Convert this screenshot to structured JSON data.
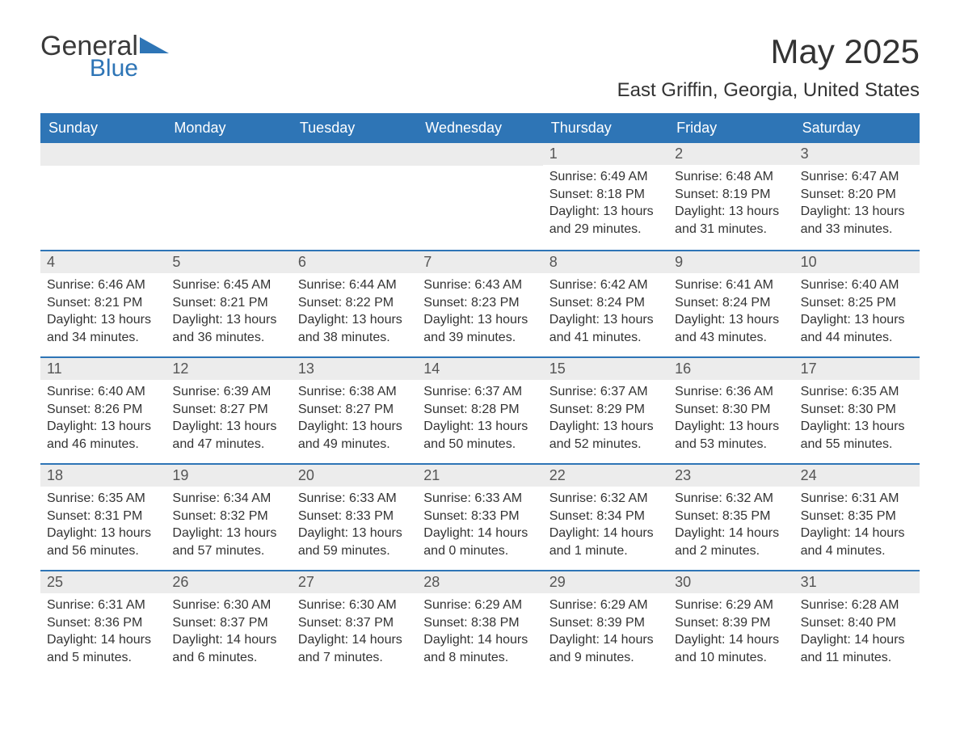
{
  "logo": {
    "word1": "General",
    "word2": "Blue"
  },
  "title": "May 2025",
  "location": "East Griffin, Georgia, United States",
  "colors": {
    "header_bg": "#2e75b6",
    "header_text": "#ffffff",
    "daynum_bg": "#ececec",
    "rule": "#2e75b6",
    "body_text": "#333333",
    "logo_gray": "#3a3a3a",
    "logo_blue": "#2e75b6",
    "page_bg": "#ffffff"
  },
  "weekdays": [
    "Sunday",
    "Monday",
    "Tuesday",
    "Wednesday",
    "Thursday",
    "Friday",
    "Saturday"
  ],
  "weeks": [
    [
      {
        "n": "",
        "sunrise": "",
        "sunset": "",
        "daylight": ""
      },
      {
        "n": "",
        "sunrise": "",
        "sunset": "",
        "daylight": ""
      },
      {
        "n": "",
        "sunrise": "",
        "sunset": "",
        "daylight": ""
      },
      {
        "n": "",
        "sunrise": "",
        "sunset": "",
        "daylight": ""
      },
      {
        "n": "1",
        "sunrise": "Sunrise: 6:49 AM",
        "sunset": "Sunset: 8:18 PM",
        "daylight": "Daylight: 13 hours and 29 minutes."
      },
      {
        "n": "2",
        "sunrise": "Sunrise: 6:48 AM",
        "sunset": "Sunset: 8:19 PM",
        "daylight": "Daylight: 13 hours and 31 minutes."
      },
      {
        "n": "3",
        "sunrise": "Sunrise: 6:47 AM",
        "sunset": "Sunset: 8:20 PM",
        "daylight": "Daylight: 13 hours and 33 minutes."
      }
    ],
    [
      {
        "n": "4",
        "sunrise": "Sunrise: 6:46 AM",
        "sunset": "Sunset: 8:21 PM",
        "daylight": "Daylight: 13 hours and 34 minutes."
      },
      {
        "n": "5",
        "sunrise": "Sunrise: 6:45 AM",
        "sunset": "Sunset: 8:21 PM",
        "daylight": "Daylight: 13 hours and 36 minutes."
      },
      {
        "n": "6",
        "sunrise": "Sunrise: 6:44 AM",
        "sunset": "Sunset: 8:22 PM",
        "daylight": "Daylight: 13 hours and 38 minutes."
      },
      {
        "n": "7",
        "sunrise": "Sunrise: 6:43 AM",
        "sunset": "Sunset: 8:23 PM",
        "daylight": "Daylight: 13 hours and 39 minutes."
      },
      {
        "n": "8",
        "sunrise": "Sunrise: 6:42 AM",
        "sunset": "Sunset: 8:24 PM",
        "daylight": "Daylight: 13 hours and 41 minutes."
      },
      {
        "n": "9",
        "sunrise": "Sunrise: 6:41 AM",
        "sunset": "Sunset: 8:24 PM",
        "daylight": "Daylight: 13 hours and 43 minutes."
      },
      {
        "n": "10",
        "sunrise": "Sunrise: 6:40 AM",
        "sunset": "Sunset: 8:25 PM",
        "daylight": "Daylight: 13 hours and 44 minutes."
      }
    ],
    [
      {
        "n": "11",
        "sunrise": "Sunrise: 6:40 AM",
        "sunset": "Sunset: 8:26 PM",
        "daylight": "Daylight: 13 hours and 46 minutes."
      },
      {
        "n": "12",
        "sunrise": "Sunrise: 6:39 AM",
        "sunset": "Sunset: 8:27 PM",
        "daylight": "Daylight: 13 hours and 47 minutes."
      },
      {
        "n": "13",
        "sunrise": "Sunrise: 6:38 AM",
        "sunset": "Sunset: 8:27 PM",
        "daylight": "Daylight: 13 hours and 49 minutes."
      },
      {
        "n": "14",
        "sunrise": "Sunrise: 6:37 AM",
        "sunset": "Sunset: 8:28 PM",
        "daylight": "Daylight: 13 hours and 50 minutes."
      },
      {
        "n": "15",
        "sunrise": "Sunrise: 6:37 AM",
        "sunset": "Sunset: 8:29 PM",
        "daylight": "Daylight: 13 hours and 52 minutes."
      },
      {
        "n": "16",
        "sunrise": "Sunrise: 6:36 AM",
        "sunset": "Sunset: 8:30 PM",
        "daylight": "Daylight: 13 hours and 53 minutes."
      },
      {
        "n": "17",
        "sunrise": "Sunrise: 6:35 AM",
        "sunset": "Sunset: 8:30 PM",
        "daylight": "Daylight: 13 hours and 55 minutes."
      }
    ],
    [
      {
        "n": "18",
        "sunrise": "Sunrise: 6:35 AM",
        "sunset": "Sunset: 8:31 PM",
        "daylight": "Daylight: 13 hours and 56 minutes."
      },
      {
        "n": "19",
        "sunrise": "Sunrise: 6:34 AM",
        "sunset": "Sunset: 8:32 PM",
        "daylight": "Daylight: 13 hours and 57 minutes."
      },
      {
        "n": "20",
        "sunrise": "Sunrise: 6:33 AM",
        "sunset": "Sunset: 8:33 PM",
        "daylight": "Daylight: 13 hours and 59 minutes."
      },
      {
        "n": "21",
        "sunrise": "Sunrise: 6:33 AM",
        "sunset": "Sunset: 8:33 PM",
        "daylight": "Daylight: 14 hours and 0 minutes."
      },
      {
        "n": "22",
        "sunrise": "Sunrise: 6:32 AM",
        "sunset": "Sunset: 8:34 PM",
        "daylight": "Daylight: 14 hours and 1 minute."
      },
      {
        "n": "23",
        "sunrise": "Sunrise: 6:32 AM",
        "sunset": "Sunset: 8:35 PM",
        "daylight": "Daylight: 14 hours and 2 minutes."
      },
      {
        "n": "24",
        "sunrise": "Sunrise: 6:31 AM",
        "sunset": "Sunset: 8:35 PM",
        "daylight": "Daylight: 14 hours and 4 minutes."
      }
    ],
    [
      {
        "n": "25",
        "sunrise": "Sunrise: 6:31 AM",
        "sunset": "Sunset: 8:36 PM",
        "daylight": "Daylight: 14 hours and 5 minutes."
      },
      {
        "n": "26",
        "sunrise": "Sunrise: 6:30 AM",
        "sunset": "Sunset: 8:37 PM",
        "daylight": "Daylight: 14 hours and 6 minutes."
      },
      {
        "n": "27",
        "sunrise": "Sunrise: 6:30 AM",
        "sunset": "Sunset: 8:37 PM",
        "daylight": "Daylight: 14 hours and 7 minutes."
      },
      {
        "n": "28",
        "sunrise": "Sunrise: 6:29 AM",
        "sunset": "Sunset: 8:38 PM",
        "daylight": "Daylight: 14 hours and 8 minutes."
      },
      {
        "n": "29",
        "sunrise": "Sunrise: 6:29 AM",
        "sunset": "Sunset: 8:39 PM",
        "daylight": "Daylight: 14 hours and 9 minutes."
      },
      {
        "n": "30",
        "sunrise": "Sunrise: 6:29 AM",
        "sunset": "Sunset: 8:39 PM",
        "daylight": "Daylight: 14 hours and 10 minutes."
      },
      {
        "n": "31",
        "sunrise": "Sunrise: 6:28 AM",
        "sunset": "Sunset: 8:40 PM",
        "daylight": "Daylight: 14 hours and 11 minutes."
      }
    ]
  ]
}
